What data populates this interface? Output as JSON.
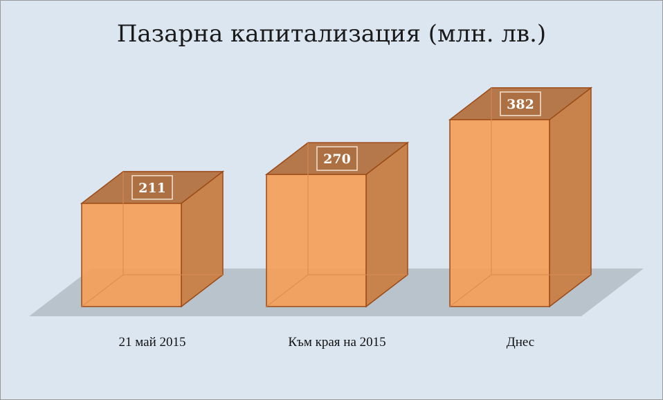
{
  "chart_data": {
    "type": "bar3d",
    "title": "Пазарна капитализация (млн. лв.)",
    "categories": [
      "21 май 2015",
      "Към края на 2015",
      "Днес"
    ],
    "values": [
      211,
      270,
      382
    ],
    "color": "#f4a05a"
  }
}
